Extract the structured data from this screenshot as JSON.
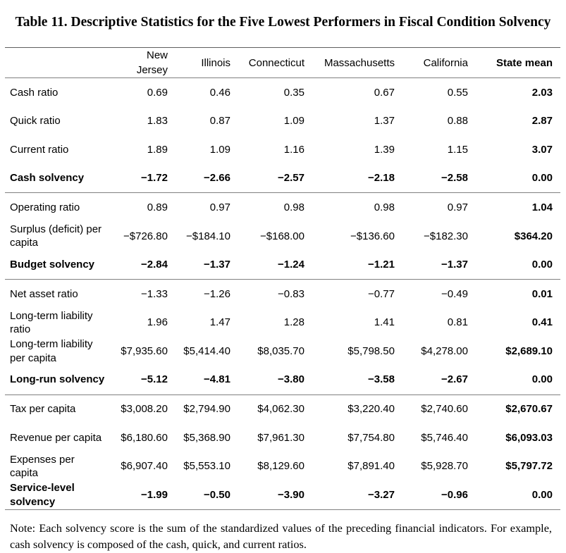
{
  "title": "Table 11. Descriptive Statistics for the Five Lowest Performers in Fiscal Condition Solvency",
  "table": {
    "columns": [
      "New Jersey",
      "Illinois",
      "Connecticut",
      "Massachusetts",
      "California",
      "State mean"
    ],
    "groups": [
      {
        "rows": [
          {
            "label": "Cash ratio",
            "values": [
              "0.69",
              "0.46",
              "0.35",
              "0.67",
              "0.55",
              "2.03"
            ]
          },
          {
            "label": "Quick ratio",
            "values": [
              "1.83",
              "0.87",
              "1.09",
              "1.37",
              "0.88",
              "2.87"
            ]
          },
          {
            "label": "Current ratio",
            "values": [
              "1.89",
              "1.09",
              "1.16",
              "1.39",
              "1.15",
              "3.07"
            ]
          },
          {
            "label": "Cash solvency",
            "values": [
              "−1.72",
              "−2.66",
              "−2.57",
              "−2.18",
              "−2.58",
              "0.00"
            ]
          }
        ]
      },
      {
        "rows": [
          {
            "label": "Operating ratio",
            "values": [
              "0.89",
              "0.97",
              "0.98",
              "0.98",
              "0.97",
              "1.04"
            ]
          },
          {
            "label": "Surplus (deficit) per capita",
            "values": [
              "−$726.80",
              "−$184.10",
              "−$168.00",
              "−$136.60",
              "−$182.30",
              "$364.20"
            ]
          },
          {
            "label": "Budget solvency",
            "values": [
              "−2.84",
              "−1.37",
              "−1.24",
              "−1.21",
              "−1.37",
              "0.00"
            ]
          }
        ]
      },
      {
        "rows": [
          {
            "label": "Net asset ratio",
            "values": [
              "−1.33",
              "−1.26",
              "−0.83",
              "−0.77",
              "−0.49",
              "0.01"
            ]
          },
          {
            "label": "Long-term liability ratio",
            "values": [
              "1.96",
              "1.47",
              "1.28",
              "1.41",
              "0.81",
              "0.41"
            ]
          },
          {
            "label": "Long-term liability per capita",
            "values": [
              "$7,935.60",
              "$5,414.40",
              "$8,035.70",
              "$5,798.50",
              "$4,278.00",
              "$2,689.10"
            ]
          },
          {
            "label": "Long-run solvency",
            "values": [
              "−5.12",
              "−4.81",
              "−3.80",
              "−3.58",
              "−2.67",
              "0.00"
            ]
          }
        ]
      },
      {
        "rows": [
          {
            "label": "Tax per capita",
            "values": [
              "$3,008.20",
              "$2,794.90",
              "$4,062.30",
              "$3,220.40",
              "$2,740.60",
              "$2,670.67"
            ]
          },
          {
            "label": "Revenue per capita",
            "values": [
              "$6,180.60",
              "$5,368.90",
              "$7,961.30",
              "$7,754.80",
              "$5,746.40",
              "$6,093.03"
            ]
          },
          {
            "label": "Expenses per capita",
            "values": [
              "$6,907.40",
              "$5,553.10",
              "$8,129.60",
              "$7,891.40",
              "$5,928.70",
              "$5,797.72"
            ]
          },
          {
            "label": "Service-level solvency",
            "values": [
              "−1.99",
              "−0.50",
              "−3.90",
              "−3.27",
              "−0.96",
              "0.00"
            ]
          }
        ]
      }
    ]
  },
  "note": "Note: Each solvency score is the sum of the standardized values of the preceding financial indicators. For example, cash solvency is composed of the cash, quick, and current ratios."
}
